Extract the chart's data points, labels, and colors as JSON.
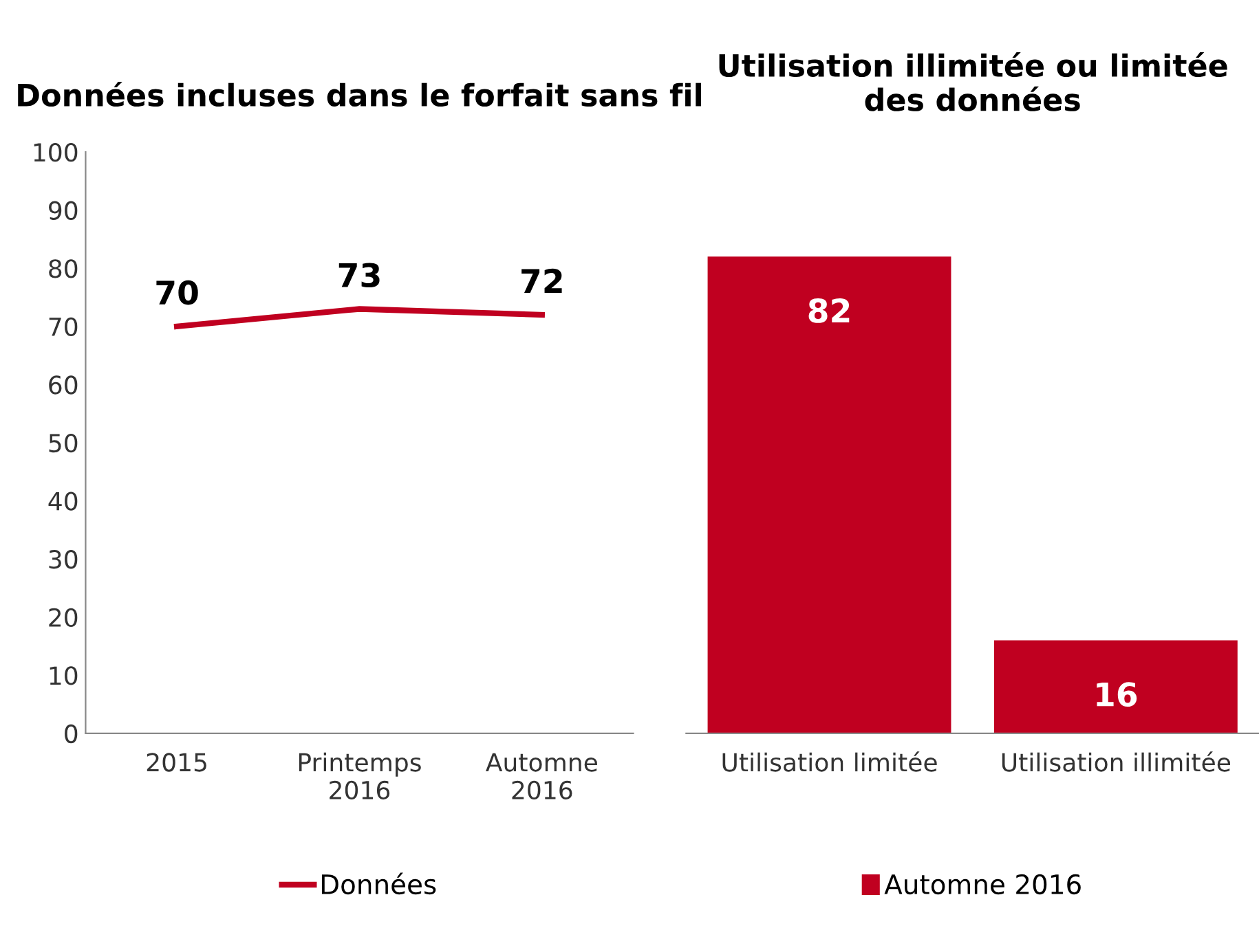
{
  "chart_data": [
    {
      "type": "line",
      "title": "Données incluses dans le forfait sans fil",
      "categories": [
        "2015",
        "Printemps\n2016",
        "Automne\n2016"
      ],
      "series": [
        {
          "name": "Données",
          "color": "#c00020",
          "values": [
            70,
            73,
            72
          ]
        }
      ],
      "ylim": [
        0,
        100
      ],
      "yticks": [
        0,
        10,
        20,
        30,
        40,
        50,
        60,
        70,
        80,
        90,
        100
      ],
      "data_labels": true,
      "grid": false,
      "legend": "bottom",
      "marker": "none",
      "line_style": "solid"
    },
    {
      "type": "bar",
      "title": "Utilisation illimitée ou limitée des données",
      "categories": [
        "Utilisation limitée",
        "Utilisation illimitée"
      ],
      "series": [
        {
          "name": "Automne 2016",
          "color": "#c00020",
          "values": [
            82,
            16
          ]
        }
      ],
      "ylim": [
        0,
        100
      ],
      "tick_labels": "x",
      "data_labels": true,
      "grid": false,
      "legend": "bottom"
    }
  ]
}
